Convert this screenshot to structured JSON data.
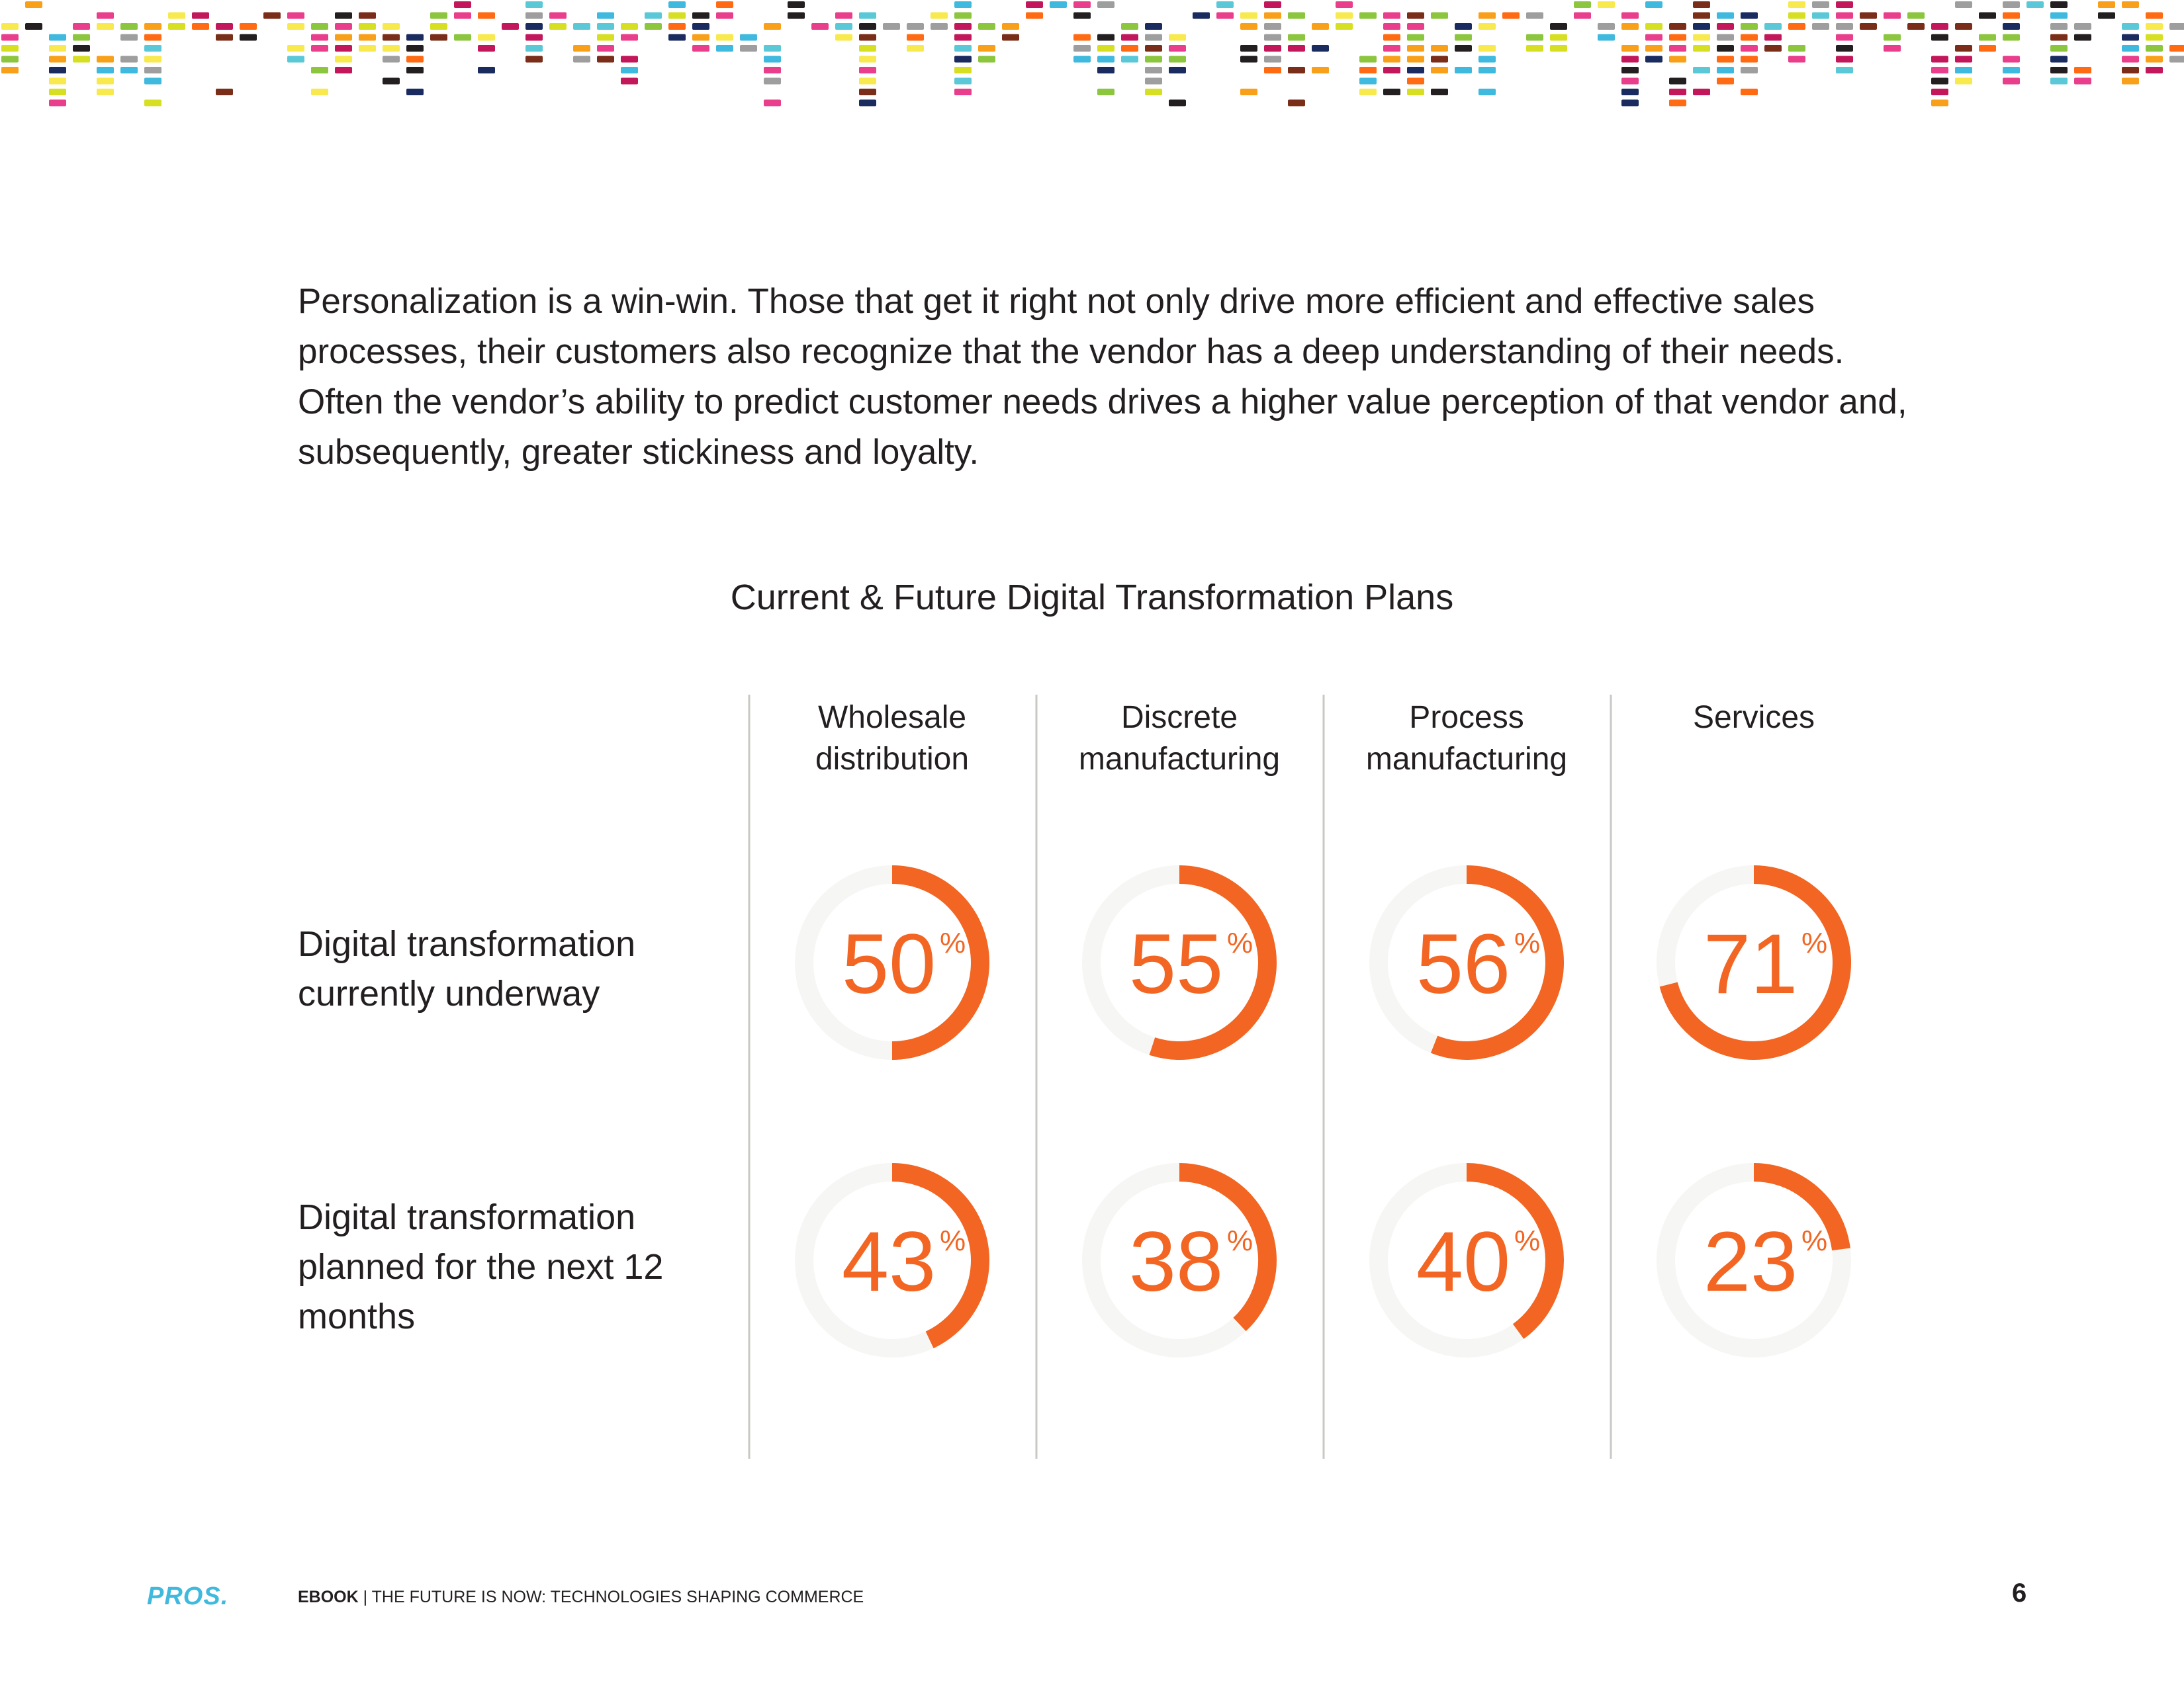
{
  "intro_text": "Personalization is a win-win. Those that get it right not only drive more efficient and effective sales processes, their customers also recognize that the vendor has a deep understanding of their needs. Often the vendor’s ability to predict customer needs drives a higher value perception of that vendor and, subsequently, greater stickiness and loyalty.",
  "chart_data": {
    "type": "radial-progress",
    "title": "Current & Future Digital Transformation Plans",
    "columns": [
      {
        "label_lines": [
          "Wholesale",
          "distribution"
        ]
      },
      {
        "label_lines": [
          "Discrete",
          "manufacturing"
        ]
      },
      {
        "label_lines": [
          "Process",
          "manufacturing"
        ]
      },
      {
        "label_lines": [
          "Services"
        ]
      }
    ],
    "rows": [
      {
        "label": "Digital transformation currently underway",
        "values": [
          50,
          55,
          56,
          71
        ]
      },
      {
        "label": "Digital transformation planned for the next 12 months",
        "values": [
          43,
          38,
          40,
          23
        ]
      }
    ],
    "unit": "%",
    "range": [
      0,
      100
    ]
  },
  "colors": {
    "accent": "#f26522",
    "track": "#f6f6f4",
    "divider": "#c9c9c4",
    "text": "#231f20",
    "logo": "#3fb9de"
  },
  "footer": {
    "logo": "PROS.",
    "label": "EBOOK",
    "separator": "|",
    "title": "THE FUTURE IS NOW: TECHNOLOGIES SHAPING COMMERCE",
    "page_number": "6"
  }
}
